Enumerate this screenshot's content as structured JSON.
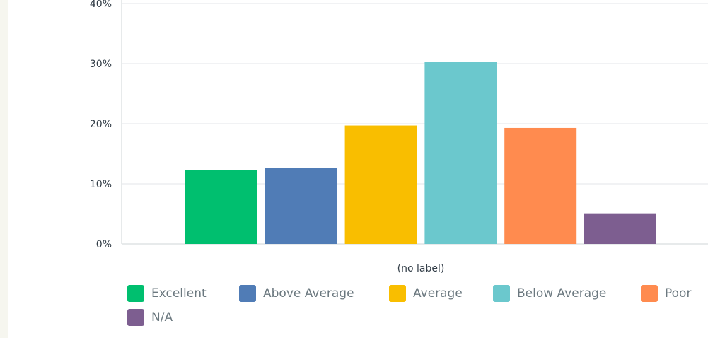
{
  "chart_data": {
    "type": "bar",
    "title": "",
    "xlabel": "",
    "ylabel": "",
    "categories": [
      "(no label)"
    ],
    "series": [
      {
        "name": "Excellent",
        "values": [
          12.3
        ],
        "color": "#00bf6f"
      },
      {
        "name": "Above Average",
        "values": [
          12.7
        ],
        "color": "#507cb6"
      },
      {
        "name": "Average",
        "values": [
          19.7
        ],
        "color": "#f9be00"
      },
      {
        "name": "Below Average",
        "values": [
          30.3
        ],
        "color": "#6bc8cd"
      },
      {
        "name": "Poor",
        "values": [
          19.3
        ],
        "color": "#ff8b4f"
      },
      {
        "name": "N/A",
        "values": [
          5.1
        ],
        "color": "#7d5e90"
      }
    ],
    "ylim": [
      0,
      40
    ],
    "yticks": [
      "0%",
      "10%",
      "20%",
      "30%",
      "40%"
    ],
    "grid": true,
    "legend_position": "bottom"
  }
}
